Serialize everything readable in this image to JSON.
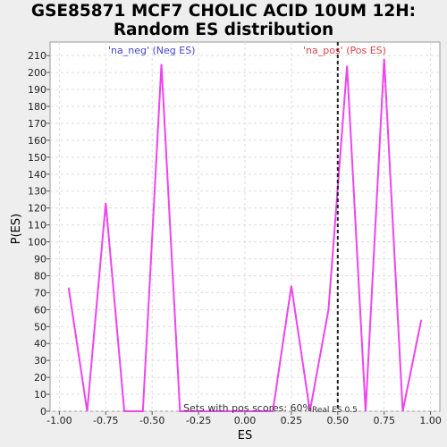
{
  "title_line1": "GSE85871 MCF7 CHOLIC ACID 10UM 12H:",
  "title_line2": "Random ES distribution",
  "chart_data": {
    "type": "line",
    "xlabel": "ES",
    "ylabel": "P(ES)",
    "xlim": [
      -1.05,
      1.05
    ],
    "ylim": [
      0,
      218
    ],
    "x_ticks": [
      "-1.00",
      "-0.75",
      "-0.50",
      "-0.25",
      "0.00",
      "0.25",
      "0.50",
      "0.75",
      "1.00"
    ],
    "x_tick_values": [
      -1.0,
      -0.75,
      -0.5,
      -0.25,
      0.0,
      0.25,
      0.5,
      0.75,
      1.0
    ],
    "y_ticks": [
      0,
      10,
      20,
      30,
      40,
      50,
      60,
      70,
      80,
      90,
      100,
      110,
      120,
      130,
      140,
      150,
      160,
      170,
      180,
      190,
      200,
      210
    ],
    "grid": true,
    "series": [
      {
        "color": "#ee44ee",
        "x": [
          -0.95,
          -0.85,
          -0.75,
          -0.65,
          -0.55,
          -0.45,
          -0.35,
          -0.25,
          -0.15,
          -0.05,
          0.05,
          0.15,
          0.25,
          0.35,
          0.45,
          0.55,
          0.65,
          0.75,
          0.85,
          0.95
        ],
        "y": [
          73,
          0,
          123,
          0,
          0,
          205,
          0,
          0,
          0,
          0,
          0,
          0,
          74,
          0,
          60,
          204,
          0,
          208,
          0,
          54
        ]
      }
    ],
    "vline": {
      "x": 0.5,
      "label": "Real ES 0.5",
      "color": "#222222"
    },
    "annotations": {
      "neg": {
        "text": "'na_neg' (Neg ES)",
        "color": "#4444cc"
      },
      "pos": {
        "text": "'na_pos' (Pos ES)",
        "color": "#dd4444"
      },
      "footer": {
        "text": "Sets with pos scores: 60%",
        "color": "#333333"
      }
    }
  }
}
